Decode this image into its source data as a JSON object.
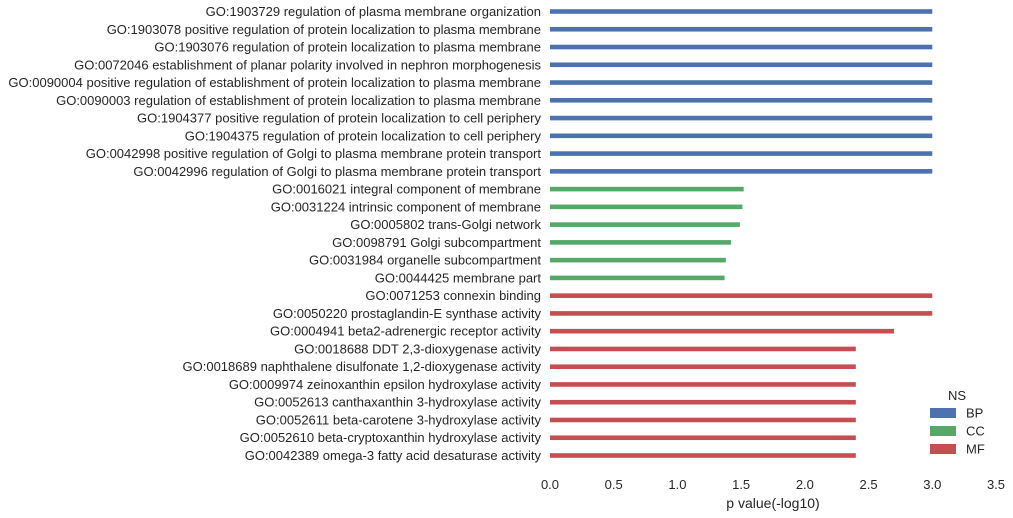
{
  "chart_data": {
    "type": "bar",
    "orientation": "horizontal",
    "xlabel": "p value(-log10)",
    "xlim": [
      0,
      3.5
    ],
    "xticks": [
      "0.0",
      "0.5",
      "1.0",
      "1.5",
      "2.0",
      "2.5",
      "3.0",
      "3.5"
    ],
    "grid": false,
    "legend": {
      "title": "NS",
      "placement": "bottom-right",
      "entries": [
        {
          "name": "BP",
          "color": "#4c72b0"
        },
        {
          "name": "CC",
          "color": "#55a868"
        },
        {
          "name": "MF",
          "color": "#c44e52"
        }
      ]
    },
    "categories": [
      {
        "label": "GO:1903729 regulation of plasma membrane organization",
        "value": 3.0,
        "ns": "BP"
      },
      {
        "label": "GO:1903078 positive regulation of protein localization to plasma membrane",
        "value": 3.0,
        "ns": "BP"
      },
      {
        "label": "GO:1903076 regulation of protein localization to plasma membrane",
        "value": 3.0,
        "ns": "BP"
      },
      {
        "label": "GO:0072046 establishment of planar polarity involved in nephron morphogenesis",
        "value": 3.0,
        "ns": "BP"
      },
      {
        "label": "GO:0090004 positive regulation of establishment of protein localization to plasma membrane",
        "value": 3.0,
        "ns": "BP"
      },
      {
        "label": "GO:0090003 regulation of establishment of protein localization to plasma membrane",
        "value": 3.0,
        "ns": "BP"
      },
      {
        "label": "GO:1904377 positive regulation of protein localization to cell periphery",
        "value": 3.0,
        "ns": "BP"
      },
      {
        "label": "GO:1904375 regulation of protein localization to cell periphery",
        "value": 3.0,
        "ns": "BP"
      },
      {
        "label": "GO:0042998 positive regulation of Golgi to plasma membrane protein transport",
        "value": 3.0,
        "ns": "BP"
      },
      {
        "label": "GO:0042996 regulation of Golgi to plasma membrane protein transport",
        "value": 3.0,
        "ns": "BP"
      },
      {
        "label": "GO:0016021 integral component of membrane",
        "value": 1.52,
        "ns": "CC"
      },
      {
        "label": "GO:0031224 intrinsic component of membrane",
        "value": 1.51,
        "ns": "CC"
      },
      {
        "label": "GO:0005802 trans-Golgi network",
        "value": 1.49,
        "ns": "CC"
      },
      {
        "label": "GO:0098791 Golgi subcompartment",
        "value": 1.42,
        "ns": "CC"
      },
      {
        "label": "GO:0031984 organelle subcompartment",
        "value": 1.38,
        "ns": "CC"
      },
      {
        "label": "GO:0044425 membrane part",
        "value": 1.37,
        "ns": "CC"
      },
      {
        "label": "GO:0071253 connexin binding",
        "value": 3.0,
        "ns": "MF"
      },
      {
        "label": "GO:0050220 prostaglandin-E synthase activity",
        "value": 3.0,
        "ns": "MF"
      },
      {
        "label": "GO:0004941 beta2-adrenergic receptor activity",
        "value": 2.7,
        "ns": "MF"
      },
      {
        "label": "GO:0018688 DDT 2,3-dioxygenase activity",
        "value": 2.4,
        "ns": "MF"
      },
      {
        "label": "GO:0018689 naphthalene disulfonate 1,2-dioxygenase activity",
        "value": 2.4,
        "ns": "MF"
      },
      {
        "label": "GO:0009974 zeinoxanthin epsilon hydroxylase activity",
        "value": 2.4,
        "ns": "MF"
      },
      {
        "label": "GO:0052613 canthaxanthin 3-hydroxylase activity",
        "value": 2.4,
        "ns": "MF"
      },
      {
        "label": "GO:0052611 beta-carotene 3-hydroxylase activity",
        "value": 2.4,
        "ns": "MF"
      },
      {
        "label": "GO:0052610 beta-cryptoxanthin hydroxylase activity",
        "value": 2.4,
        "ns": "MF"
      },
      {
        "label": "GO:0042389 omega-3 fatty acid desaturase activity",
        "value": 2.4,
        "ns": "MF"
      }
    ]
  }
}
